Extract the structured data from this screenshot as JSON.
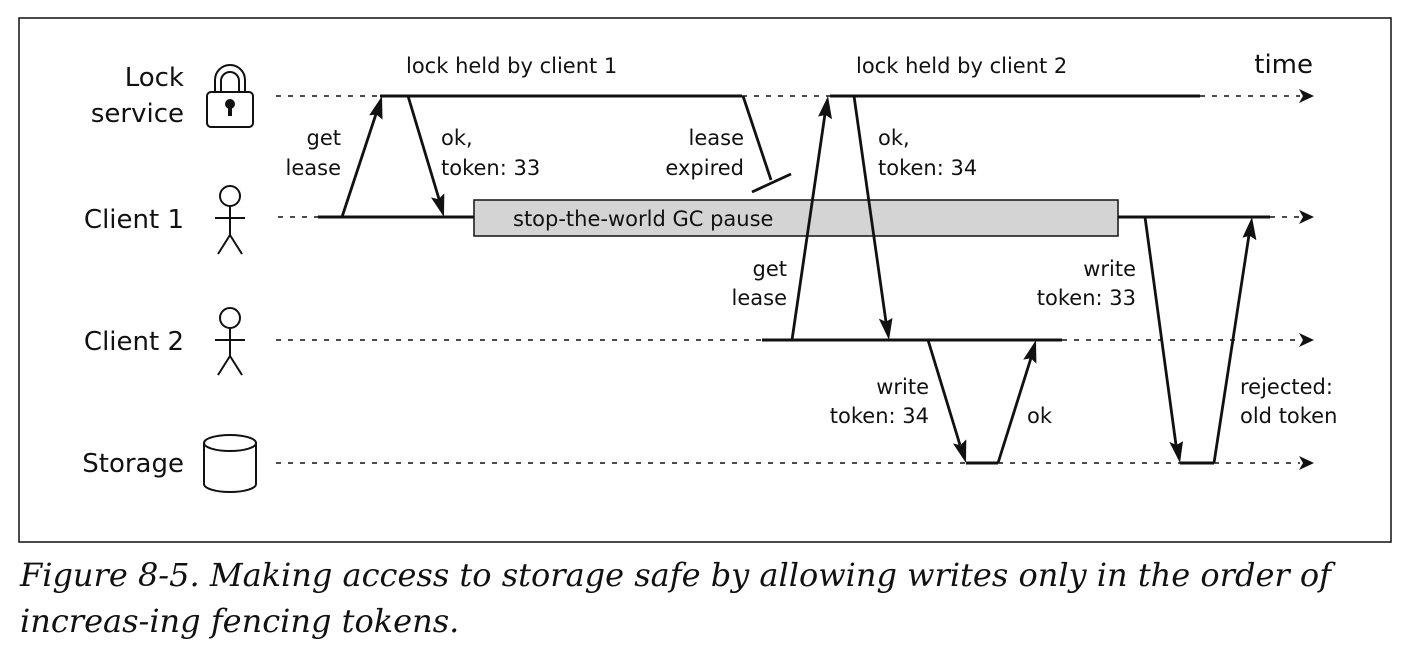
{
  "lanes": {
    "lock_service": [
      "Lock",
      "service"
    ],
    "client1": "Client 1",
    "client2": "Client 2",
    "storage": "Storage"
  },
  "time_label": "time",
  "periods": {
    "held1": "lock held by client 1",
    "held2": "lock held by client 2"
  },
  "gc_pause": "stop-the-world GC pause",
  "messages": {
    "get_lease_1": [
      "get",
      "lease"
    ],
    "ok_token_33": [
      "ok,",
      "token: 33"
    ],
    "lease_expired": [
      "lease",
      "expired"
    ],
    "get_lease_2": [
      "get",
      "lease"
    ],
    "ok_token_34": [
      "ok,",
      "token: 34"
    ],
    "write_token_34": [
      "write",
      "token: 34"
    ],
    "ok": "ok",
    "write_token_33": [
      "write",
      "token: 33"
    ],
    "rejected": [
      "rejected:",
      "old token"
    ]
  },
  "caption": "Figure 8-5. Making access to storage safe by allowing writes only in the order of increas-ing fencing tokens."
}
